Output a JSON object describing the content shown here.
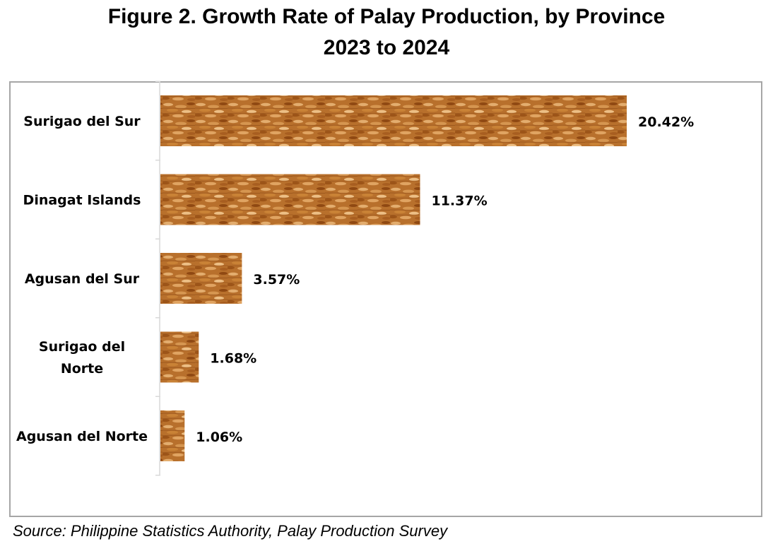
{
  "title_line_1": "Figure 2. Growth Rate of Palay Production, by Province",
  "title_line_2": "2023 to 2024",
  "source": "Source: Philippine Statistics Authority, Palay Production Survey",
  "chart_data": {
    "type": "bar",
    "orientation": "horizontal",
    "categories": [
      "Surigao del Sur",
      "Dinagat Islands",
      "Agusan del Sur",
      "Surigao del Norte",
      "Agusan del Norte"
    ],
    "category_label_lines": [
      [
        "Surigao del Sur"
      ],
      [
        "Dinagat Islands"
      ],
      [
        "Agusan del Sur"
      ],
      [
        "Surigao del",
        "Norte"
      ],
      [
        "Agusan del Norte"
      ]
    ],
    "values": [
      20.42,
      11.37,
      3.57,
      1.68,
      1.06
    ],
    "value_labels": [
      "20.42%",
      "11.37%",
      "3.57%",
      "1.68%",
      "1.06%"
    ],
    "unit": "%",
    "xlim": [
      0,
      20.42
    ],
    "grid": false,
    "bar_fill": "rice-grain texture",
    "colors": {
      "grain_dark": "#9a4c12",
      "grain_mid": "#c9843a",
      "grain_light": "#e8b77a",
      "axis": "#d9d9d9",
      "border": "#a6a6a6"
    }
  }
}
